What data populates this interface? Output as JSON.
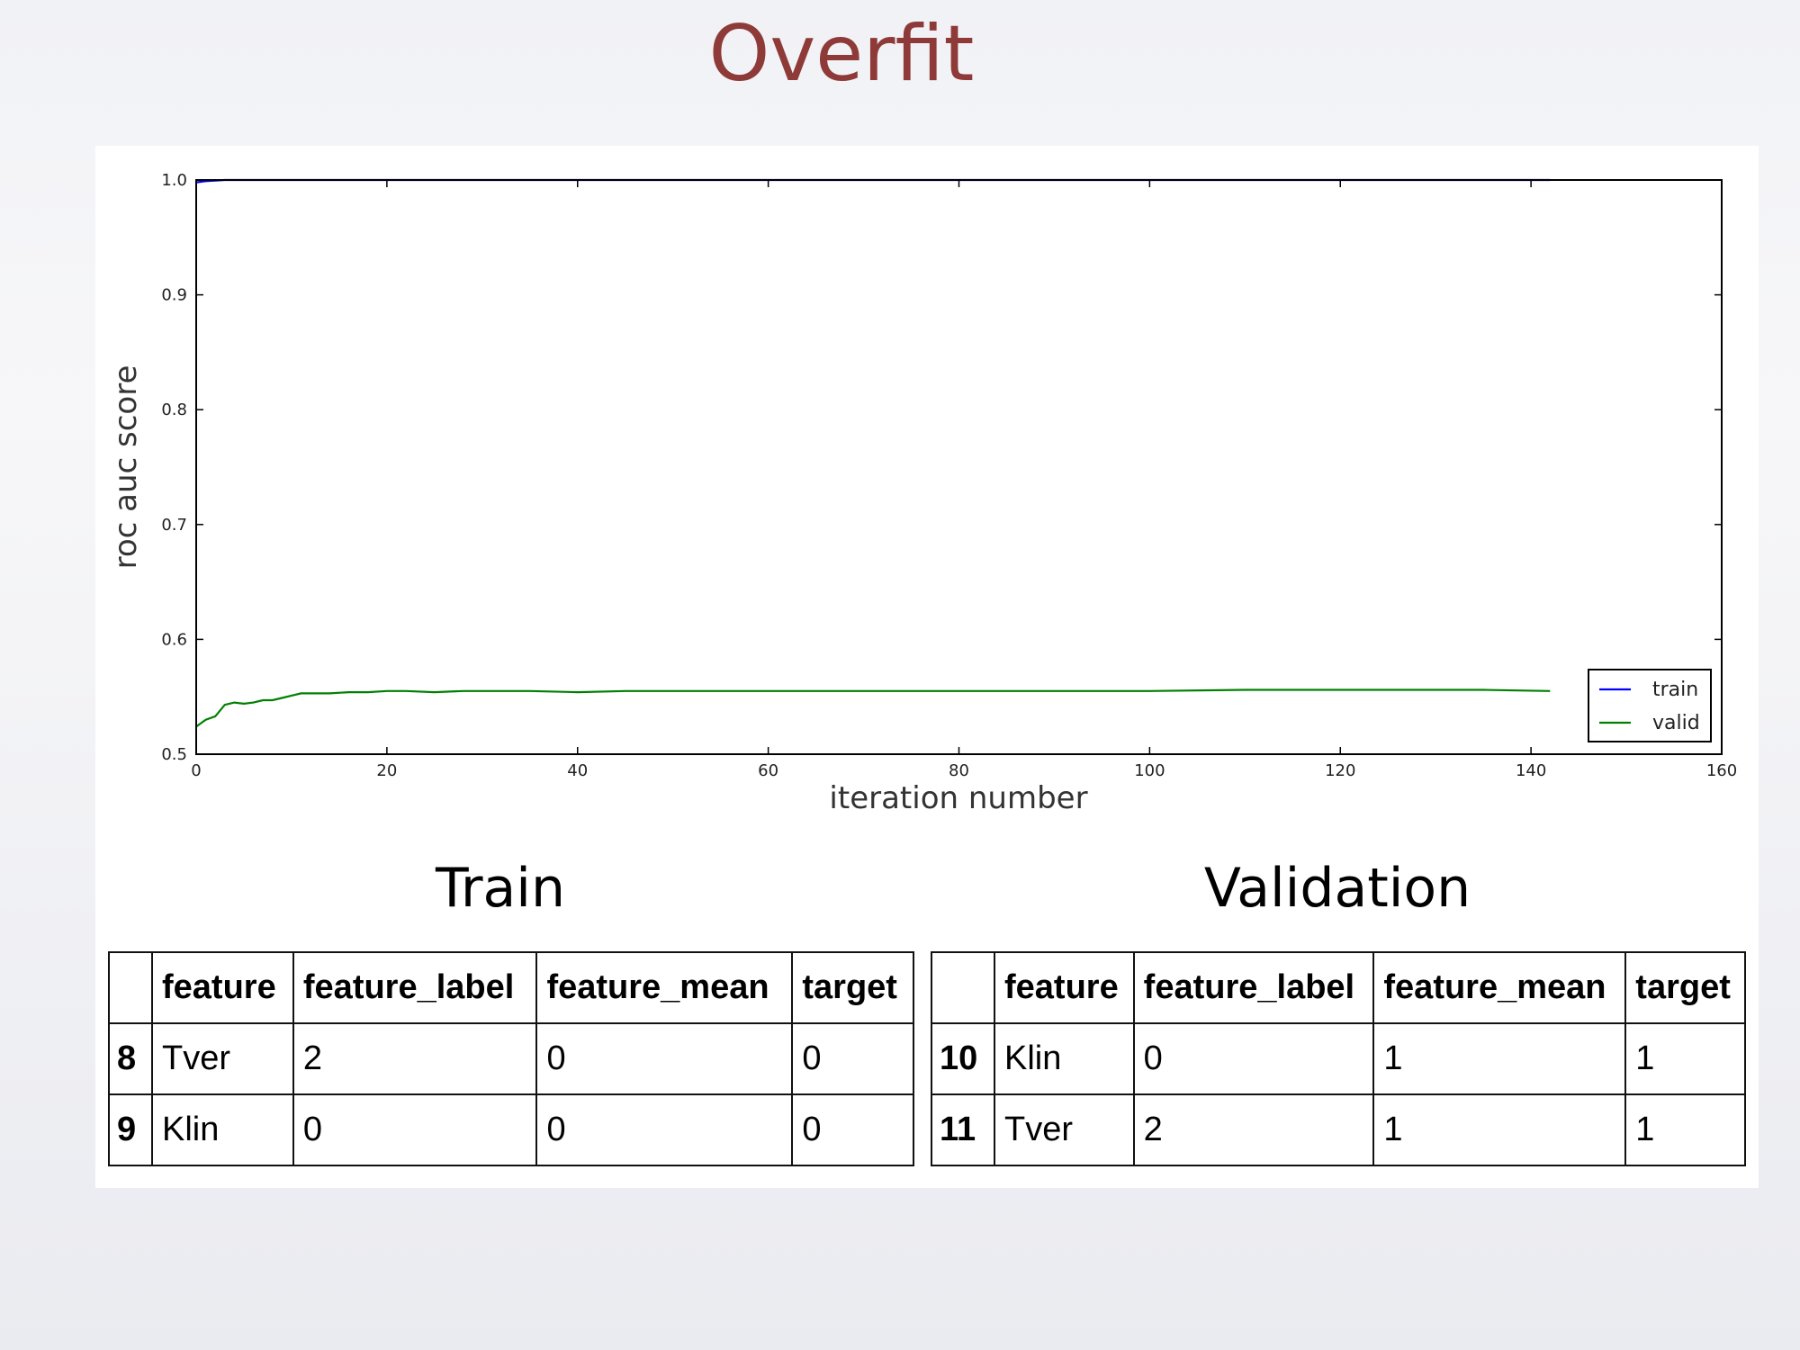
{
  "slide": {
    "title": "Overfit"
  },
  "chart_data": {
    "type": "line",
    "xlabel": "iteration number",
    "ylabel": "roc auc score",
    "xlim": [
      0,
      160
    ],
    "ylim": [
      0.5,
      1.0
    ],
    "xticks": [
      0,
      20,
      40,
      60,
      80,
      100,
      120,
      140,
      160
    ],
    "yticks": [
      0.5,
      0.6,
      0.7,
      0.8,
      0.9,
      1.0
    ],
    "ytick_labels": [
      "0.5",
      "0.6",
      "0.7",
      "0.8",
      "0.9",
      "1.0"
    ],
    "legend_position": "lower-right",
    "series": [
      {
        "name": "train",
        "color": "#0000ff",
        "x": [
          0,
          1,
          2,
          3,
          4,
          5,
          6,
          7,
          8,
          9,
          10,
          11,
          12,
          13,
          14,
          15,
          16,
          17,
          18,
          19,
          20,
          22,
          25,
          30,
          35,
          40,
          45,
          50,
          60,
          70,
          80,
          90,
          100,
          110,
          120,
          130,
          142
        ],
        "y": [
          0.998,
          0.999,
          0.9995,
          1.0,
          1.0,
          1.0,
          1.0,
          1.0,
          1.0,
          1.0,
          1.0,
          1.0,
          1.0,
          1.0,
          1.0,
          1.0,
          1.0,
          1.0,
          1.0,
          1.0,
          1.0,
          1.0,
          1.0,
          1.0,
          1.0,
          1.0,
          1.0,
          1.0,
          1.0,
          1.0,
          1.0,
          1.0,
          1.0,
          1.0,
          1.0,
          1.0,
          1.0
        ]
      },
      {
        "name": "valid",
        "color": "#008000",
        "x": [
          0,
          1,
          2,
          3,
          4,
          5,
          6,
          7,
          8,
          9,
          10,
          11,
          12,
          14,
          16,
          18,
          20,
          22,
          25,
          28,
          30,
          35,
          40,
          45,
          50,
          55,
          60,
          70,
          80,
          90,
          100,
          110,
          120,
          125,
          130,
          135,
          142
        ],
        "y": [
          0.524,
          0.53,
          0.533,
          0.543,
          0.545,
          0.544,
          0.545,
          0.547,
          0.547,
          0.549,
          0.551,
          0.553,
          0.553,
          0.553,
          0.554,
          0.554,
          0.555,
          0.555,
          0.554,
          0.555,
          0.555,
          0.555,
          0.554,
          0.555,
          0.555,
          0.555,
          0.555,
          0.555,
          0.555,
          0.555,
          0.555,
          0.556,
          0.556,
          0.556,
          0.556,
          0.556,
          0.555
        ]
      }
    ]
  },
  "tables": {
    "train": {
      "title": "Train",
      "columns": [
        "feature",
        "feature_label",
        "feature_mean",
        "target"
      ],
      "rows": [
        {
          "index": "8",
          "cells": [
            "Tver",
            "2",
            "0",
            "0"
          ]
        },
        {
          "index": "9",
          "cells": [
            "Klin",
            "0",
            "0",
            "0"
          ]
        }
      ]
    },
    "validation": {
      "title": "Validation",
      "columns": [
        "feature",
        "feature_label",
        "feature_mean",
        "target"
      ],
      "rows": [
        {
          "index": "10",
          "cells": [
            "Klin",
            "0",
            "1",
            "1"
          ]
        },
        {
          "index": "11",
          "cells": [
            "Tver",
            "2",
            "1",
            "1"
          ]
        }
      ]
    }
  }
}
